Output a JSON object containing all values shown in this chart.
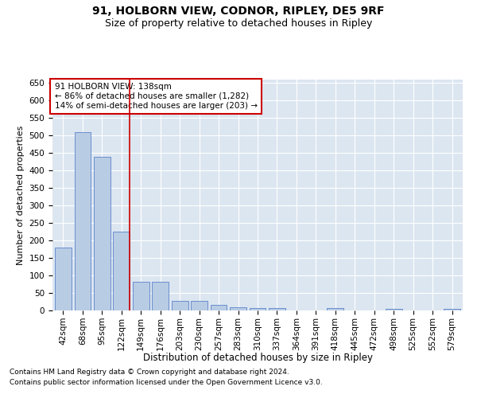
{
  "title": "91, HOLBORN VIEW, CODNOR, RIPLEY, DE5 9RF",
  "subtitle": "Size of property relative to detached houses in Ripley",
  "xlabel": "Distribution of detached houses by size in Ripley",
  "ylabel": "Number of detached properties",
  "footer1": "Contains HM Land Registry data © Crown copyright and database right 2024.",
  "footer2": "Contains public sector information licensed under the Open Government Licence v3.0.",
  "categories": [
    "42sqm",
    "68sqm",
    "95sqm",
    "122sqm",
    "149sqm",
    "176sqm",
    "203sqm",
    "230sqm",
    "257sqm",
    "283sqm",
    "310sqm",
    "337sqm",
    "364sqm",
    "391sqm",
    "418sqm",
    "445sqm",
    "472sqm",
    "498sqm",
    "525sqm",
    "552sqm",
    "579sqm"
  ],
  "values": [
    180,
    510,
    440,
    225,
    83,
    83,
    28,
    28,
    15,
    10,
    7,
    7,
    0,
    0,
    7,
    0,
    0,
    5,
    0,
    0,
    5
  ],
  "bar_color": "#b8cce4",
  "bar_edgecolor": "#4472c4",
  "background_color": "#dce6f1",
  "grid_color": "#ffffff",
  "annotation_text": "91 HOLBORN VIEW: 138sqm\n← 86% of detached houses are smaller (1,282)\n14% of semi-detached houses are larger (203) →",
  "annotation_box_edgecolor": "#cc0000",
  "vline_color": "#cc0000",
  "vline_x": 3.43,
  "ylim": [
    0,
    660
  ],
  "yticks": [
    0,
    50,
    100,
    150,
    200,
    250,
    300,
    350,
    400,
    450,
    500,
    550,
    600,
    650
  ],
  "title_fontsize": 10,
  "subtitle_fontsize": 9,
  "xlabel_fontsize": 8.5,
  "ylabel_fontsize": 8,
  "tick_fontsize": 7.5,
  "annotation_fontsize": 7.5,
  "footer_fontsize": 6.5
}
